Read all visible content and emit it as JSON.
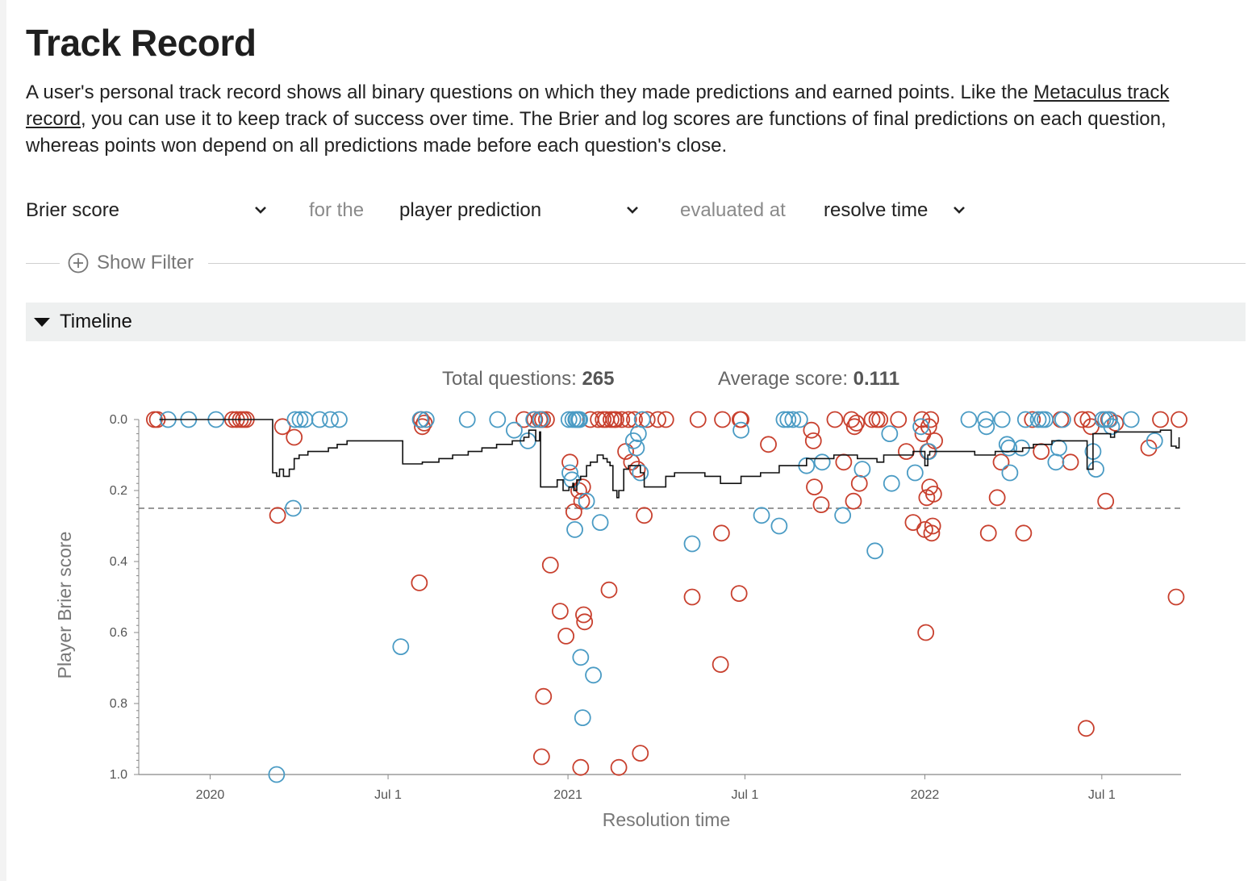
{
  "page": {
    "title": "Track Record",
    "intro_before": "A user's personal track record shows all binary questions on which they made predictions and earned points. Like the ",
    "intro_link": "Metaculus track record",
    "intro_after": ", you can use it to keep track of success over time. The Brier and log scores are functions of final predictions on each question, whereas points won depend on all predictions made before each question's close."
  },
  "controls": {
    "metric": "Brier score",
    "for_the": "for the",
    "prediction": "player prediction",
    "evaluated_at": "evaluated at",
    "time": "resolve time"
  },
  "filter": {
    "label": "Show Filter",
    "icon": "plus-circle-icon"
  },
  "timeline": {
    "label": "Timeline",
    "icon": "triangle-down-icon"
  },
  "stats": {
    "total_label": "Total questions: ",
    "total_value": "265",
    "avg_label": "Average score: ",
    "avg_value": "0.111"
  },
  "chart_data": {
    "type": "scatter",
    "xlabel": "Resolution time",
    "ylabel": "Player Brier score",
    "x_ticks": [
      "2020",
      "Jul 1",
      "2021",
      "Jul 1",
      "2022",
      "Jul 1"
    ],
    "x_tick_dates": [
      "2020-01-01",
      "2020-07-01",
      "2021-01-01",
      "2021-07-01",
      "2022-01-01",
      "2022-07-01"
    ],
    "x_range": [
      "2019-10-20",
      "2022-09-20"
    ],
    "y_ticks": [
      "0.0",
      "0.2",
      "0.4",
      "0.6",
      "0.8",
      "1.0"
    ],
    "y_range": [
      0,
      1
    ],
    "y_inverted": true,
    "reference_line": 0.25,
    "colors": {
      "red": "#c8402e",
      "blue": "#4a9bc4",
      "line": "#111111",
      "reference": "#777777"
    },
    "series": [
      {
        "color": "red",
        "points": [
          [
            "2019-11-05",
            0
          ],
          [
            "2019-11-08",
            0
          ],
          [
            "2020-01-24",
            0
          ],
          [
            "2020-01-28",
            0
          ],
          [
            "2020-02-01",
            0
          ],
          [
            "2020-02-04",
            0
          ],
          [
            "2020-02-07",
            0
          ],
          [
            "2020-03-10",
            0.27
          ],
          [
            "2020-03-15",
            0.02
          ],
          [
            "2020-03-27",
            0.05
          ],
          [
            "2020-08-02",
            0.46
          ],
          [
            "2020-08-04",
            0
          ],
          [
            "2020-08-05",
            0.02
          ],
          [
            "2020-08-07",
            0.01
          ],
          [
            "2020-11-17",
            0
          ],
          [
            "2020-11-28",
            0
          ],
          [
            "2020-12-03",
            0
          ],
          [
            "2020-12-05",
            0.95
          ],
          [
            "2020-12-06",
            0
          ],
          [
            "2020-12-07",
            0.78
          ],
          [
            "2020-12-10",
            0
          ],
          [
            "2020-12-14",
            0.41
          ],
          [
            "2020-12-24",
            0.54
          ],
          [
            "2020-12-30",
            0.61
          ],
          [
            "2021-01-03",
            0.12
          ],
          [
            "2021-01-07",
            0.26
          ],
          [
            "2021-01-12",
            0.2
          ],
          [
            "2021-01-14",
            0.98
          ],
          [
            "2021-01-15",
            0.23
          ],
          [
            "2021-01-16",
            0.19
          ],
          [
            "2021-01-17",
            0.55
          ],
          [
            "2021-01-18",
            0.57
          ],
          [
            "2021-01-24",
            0
          ],
          [
            "2021-02-01",
            0
          ],
          [
            "2021-02-06",
            0
          ],
          [
            "2021-02-09",
            0
          ],
          [
            "2021-02-12",
            0.48
          ],
          [
            "2021-02-14",
            0
          ],
          [
            "2021-02-17",
            0
          ],
          [
            "2021-02-19",
            0
          ],
          [
            "2021-02-22",
            0.98
          ],
          [
            "2021-02-25",
            0
          ],
          [
            "2021-03-01",
            0.09
          ],
          [
            "2021-03-04",
            0
          ],
          [
            "2021-03-07",
            0.12
          ],
          [
            "2021-03-10",
            0
          ],
          [
            "2021-03-13",
            0.14
          ],
          [
            "2021-03-16",
            0.94
          ],
          [
            "2021-03-20",
            0.27
          ],
          [
            "2021-03-23",
            0
          ],
          [
            "2021-04-03",
            0
          ],
          [
            "2021-04-11",
            0
          ],
          [
            "2021-05-08",
            0.5
          ],
          [
            "2021-05-14",
            0
          ],
          [
            "2021-06-06",
            0.69
          ],
          [
            "2021-06-07",
            0.32
          ],
          [
            "2021-06-08",
            0
          ],
          [
            "2021-06-25",
            0.49
          ],
          [
            "2021-06-26",
            0
          ],
          [
            "2021-06-27",
            0
          ],
          [
            "2021-07-25",
            0.07
          ],
          [
            "2021-09-07",
            0.03
          ],
          [
            "2021-09-09",
            0.06
          ],
          [
            "2021-09-10",
            0.19
          ],
          [
            "2021-09-17",
            0.24
          ],
          [
            "2021-10-01",
            0
          ],
          [
            "2021-10-10",
            0.12
          ],
          [
            "2021-10-18",
            0
          ],
          [
            "2021-10-20",
            0.23
          ],
          [
            "2021-10-21",
            0.02
          ],
          [
            "2021-10-23",
            0.01
          ],
          [
            "2021-10-26",
            0.18
          ],
          [
            "2021-11-08",
            0
          ],
          [
            "2021-11-13",
            0
          ],
          [
            "2021-11-16",
            0
          ],
          [
            "2021-12-05",
            0
          ],
          [
            "2021-12-13",
            0.09
          ],
          [
            "2021-12-20",
            0.29
          ],
          [
            "2021-12-29",
            0
          ],
          [
            "2021-12-30",
            0.04
          ],
          [
            "2022-01-01",
            0.31
          ],
          [
            "2022-01-02",
            0.6
          ],
          [
            "2022-01-03",
            0.22
          ],
          [
            "2022-01-04",
            0.09
          ],
          [
            "2022-01-05",
            0.02
          ],
          [
            "2022-01-06",
            0.19
          ],
          [
            "2022-01-07",
            0
          ],
          [
            "2022-01-08",
            0.32
          ],
          [
            "2022-01-09",
            0.3
          ],
          [
            "2022-01-10",
            0.21
          ],
          [
            "2022-01-11",
            0.06
          ],
          [
            "2022-03-07",
            0.32
          ],
          [
            "2022-03-16",
            0.22
          ],
          [
            "2022-03-20",
            0.12
          ],
          [
            "2022-04-12",
            0.32
          ],
          [
            "2022-04-21",
            0
          ],
          [
            "2022-04-30",
            0.09
          ],
          [
            "2022-05-20",
            0
          ],
          [
            "2022-05-30",
            0.12
          ],
          [
            "2022-06-11",
            0
          ],
          [
            "2022-06-15",
            0.87
          ],
          [
            "2022-06-17",
            0
          ],
          [
            "2022-06-20",
            0.02
          ],
          [
            "2022-07-05",
            0.23
          ],
          [
            "2022-07-08",
            0
          ],
          [
            "2022-07-15",
            0.01
          ],
          [
            "2022-08-18",
            0.08
          ],
          [
            "2022-08-30",
            0
          ],
          [
            "2022-09-15",
            0.5
          ],
          [
            "2022-09-18",
            0
          ]
        ]
      },
      {
        "color": "blue",
        "points": [
          [
            "2019-11-19",
            0
          ],
          [
            "2019-12-10",
            0
          ],
          [
            "2020-01-07",
            0
          ],
          [
            "2020-03-09",
            1.0
          ],
          [
            "2020-03-26",
            0.25
          ],
          [
            "2020-03-28",
            0
          ],
          [
            "2020-04-02",
            0
          ],
          [
            "2020-04-07",
            0
          ],
          [
            "2020-04-22",
            0
          ],
          [
            "2020-05-03",
            0
          ],
          [
            "2020-05-12",
            0
          ],
          [
            "2020-07-14",
            0.64
          ],
          [
            "2020-08-03",
            0
          ],
          [
            "2020-08-09",
            0
          ],
          [
            "2020-09-20",
            0
          ],
          [
            "2020-10-21",
            0
          ],
          [
            "2020-11-07",
            0.03
          ],
          [
            "2020-11-21",
            0.06
          ],
          [
            "2020-11-27",
            0
          ],
          [
            "2020-12-04",
            0
          ],
          [
            "2021-01-02",
            0
          ],
          [
            "2021-01-03",
            0.15
          ],
          [
            "2021-01-05",
            0.17
          ],
          [
            "2021-01-06",
            0
          ],
          [
            "2021-01-08",
            0.31
          ],
          [
            "2021-01-09",
            0
          ],
          [
            "2021-01-10",
            0
          ],
          [
            "2021-01-12",
            0
          ],
          [
            "2021-01-13",
            0
          ],
          [
            "2021-01-14",
            0.67
          ],
          [
            "2021-01-16",
            0.84
          ],
          [
            "2021-01-20",
            0.23
          ],
          [
            "2021-01-27",
            0.72
          ],
          [
            "2021-02-03",
            0.29
          ],
          [
            "2021-03-09",
            0.06
          ],
          [
            "2021-03-12",
            0.08
          ],
          [
            "2021-03-14",
            0.04
          ],
          [
            "2021-03-16",
            0.15
          ],
          [
            "2021-03-18",
            0
          ],
          [
            "2021-05-08",
            0.35
          ],
          [
            "2021-06-27",
            0.03
          ],
          [
            "2021-07-18",
            0.27
          ],
          [
            "2021-08-05",
            0.3
          ],
          [
            "2021-08-10",
            0
          ],
          [
            "2021-08-14",
            0
          ],
          [
            "2021-08-19",
            0
          ],
          [
            "2021-08-26",
            0
          ],
          [
            "2021-09-02",
            0.13
          ],
          [
            "2021-09-18",
            0.12
          ],
          [
            "2021-10-09",
            0.27
          ],
          [
            "2021-10-29",
            0.14
          ],
          [
            "2021-11-11",
            0.37
          ],
          [
            "2021-11-26",
            0.04
          ],
          [
            "2021-11-28",
            0.18
          ],
          [
            "2021-12-22",
            0.15
          ],
          [
            "2021-12-28",
            0.02
          ],
          [
            "2022-01-05",
            0.09
          ],
          [
            "2022-02-15",
            0
          ],
          [
            "2022-03-04",
            0
          ],
          [
            "2022-03-05",
            0.02
          ],
          [
            "2022-03-21",
            0
          ],
          [
            "2022-03-26",
            0.07
          ],
          [
            "2022-03-28",
            0.08
          ],
          [
            "2022-03-29",
            0.15
          ],
          [
            "2022-04-10",
            0.08
          ],
          [
            "2022-04-14",
            0
          ],
          [
            "2022-04-27",
            0
          ],
          [
            "2022-05-01",
            0
          ],
          [
            "2022-05-04",
            0
          ],
          [
            "2022-05-15",
            0.12
          ],
          [
            "2022-05-18",
            0.08
          ],
          [
            "2022-05-22",
            0
          ],
          [
            "2022-06-22",
            0.09
          ],
          [
            "2022-06-25",
            0.14
          ],
          [
            "2022-07-02",
            0
          ],
          [
            "2022-07-05",
            0
          ],
          [
            "2022-07-09",
            0
          ],
          [
            "2022-07-11",
            0.02
          ],
          [
            "2022-07-31",
            0
          ],
          [
            "2022-08-24",
            0.06
          ]
        ]
      }
    ],
    "running_average": [
      [
        "2019-11-10",
        0
      ],
      [
        "2020-03-02",
        0
      ],
      [
        "2020-03-05",
        0.15
      ],
      [
        "2020-03-09",
        0.16
      ],
      [
        "2020-03-12",
        0.14
      ],
      [
        "2020-03-16",
        0.16
      ],
      [
        "2020-03-22",
        0.14
      ],
      [
        "2020-03-27",
        0.11
      ],
      [
        "2020-04-01",
        0.1
      ],
      [
        "2020-04-10",
        0.09
      ],
      [
        "2020-05-01",
        0.08
      ],
      [
        "2020-05-10",
        0.07
      ],
      [
        "2020-05-20",
        0.06
      ],
      [
        "2020-07-14",
        0.06
      ],
      [
        "2020-07-16",
        0.125
      ],
      [
        "2020-08-05",
        0.12
      ],
      [
        "2020-08-15",
        0.12
      ],
      [
        "2020-08-22",
        0.11
      ],
      [
        "2020-09-05",
        0.1
      ],
      [
        "2020-09-21",
        0.09
      ],
      [
        "2020-10-05",
        0.08
      ],
      [
        "2020-10-20",
        0.07
      ],
      [
        "2020-11-05",
        0.06
      ],
      [
        "2020-11-17",
        0.05
      ],
      [
        "2020-11-22",
        0.03
      ],
      [
        "2020-11-29",
        0.06
      ],
      [
        "2020-12-03",
        0.035
      ],
      [
        "2020-12-04",
        0.19
      ],
      [
        "2020-12-14",
        0.19
      ],
      [
        "2020-12-21",
        0.17
      ],
      [
        "2020-12-27",
        0.2
      ],
      [
        "2021-01-02",
        0.19
      ],
      [
        "2021-01-06",
        0.18
      ],
      [
        "2021-01-07",
        0.2
      ],
      [
        "2021-01-10",
        0.17
      ],
      [
        "2021-01-14",
        0.16
      ],
      [
        "2021-01-20",
        0.13
      ],
      [
        "2021-01-24",
        0.12
      ],
      [
        "2021-01-31",
        0.1
      ],
      [
        "2021-02-06",
        0.11
      ],
      [
        "2021-02-10",
        0.12
      ],
      [
        "2021-02-13",
        0.13
      ],
      [
        "2021-02-16",
        0.2
      ],
      [
        "2021-02-20",
        0.22
      ],
      [
        "2021-02-22",
        0.2
      ],
      [
        "2021-02-27",
        0.14
      ],
      [
        "2021-03-04",
        0.13
      ],
      [
        "2021-03-16",
        0.15
      ],
      [
        "2021-03-20",
        0.19
      ],
      [
        "2021-03-31",
        0.19
      ],
      [
        "2021-04-11",
        0.16
      ],
      [
        "2021-04-20",
        0.15
      ],
      [
        "2021-05-01",
        0.15
      ],
      [
        "2021-05-21",
        0.16
      ],
      [
        "2021-06-06",
        0.18
      ],
      [
        "2021-06-22",
        0.18
      ],
      [
        "2021-06-27",
        0.16
      ],
      [
        "2021-07-17",
        0.15
      ],
      [
        "2021-08-05",
        0.13
      ],
      [
        "2021-09-02",
        0.11
      ],
      [
        "2021-09-30",
        0.1
      ],
      [
        "2021-10-24",
        0.11
      ],
      [
        "2021-11-08",
        0.11
      ],
      [
        "2021-11-13",
        0.12
      ],
      [
        "2021-11-20",
        0.1
      ],
      [
        "2021-12-20",
        0.09
      ],
      [
        "2021-12-28",
        0.09
      ],
      [
        "2022-01-01",
        0.13
      ],
      [
        "2022-01-04",
        0.1
      ],
      [
        "2022-01-06",
        0.09
      ],
      [
        "2022-02-14",
        0.09
      ],
      [
        "2022-02-21",
        0.1
      ],
      [
        "2022-03-14",
        0.09
      ],
      [
        "2022-04-11",
        0.08
      ],
      [
        "2022-04-22",
        0.07
      ],
      [
        "2022-05-11",
        0.06
      ],
      [
        "2022-06-15",
        0.06
      ],
      [
        "2022-06-16",
        0.14
      ],
      [
        "2022-06-20",
        0.14
      ],
      [
        "2022-06-22",
        0.04
      ],
      [
        "2022-07-08",
        0.04
      ],
      [
        "2022-07-10",
        0.05
      ],
      [
        "2022-07-14",
        0.035
      ],
      [
        "2022-08-19",
        0.035
      ],
      [
        "2022-08-30",
        0.03
      ],
      [
        "2022-09-05",
        0.03
      ],
      [
        "2022-09-10",
        0.075
      ],
      [
        "2022-09-15",
        0.08
      ],
      [
        "2022-09-18",
        0.05
      ]
    ]
  }
}
